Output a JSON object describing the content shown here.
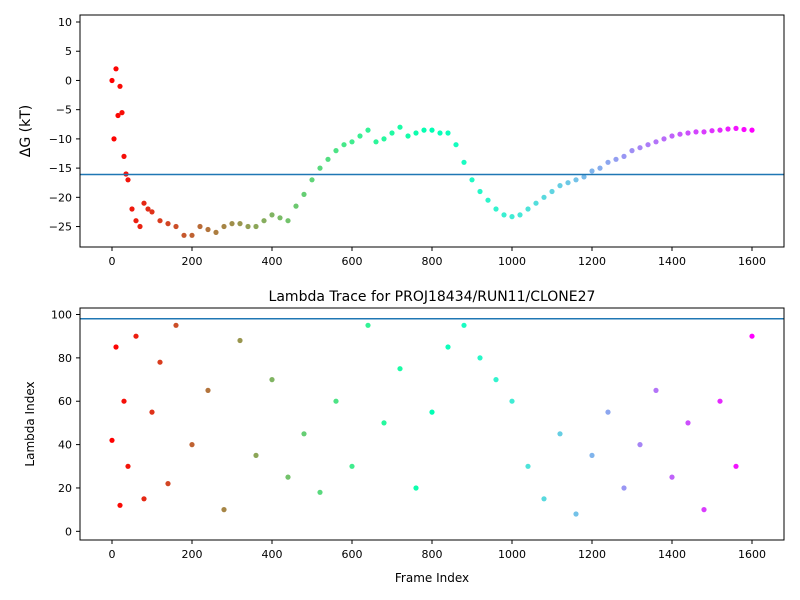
{
  "chart_data": [
    {
      "type": "scatter",
      "title": "",
      "xlabel": "",
      "ylabel": "ΔG (kT)",
      "xlim": [
        -80,
        1680
      ],
      "ylim": [
        -28.5,
        11.2
      ],
      "xticks": [
        0,
        200,
        400,
        600,
        800,
        1000,
        1200,
        1400,
        1600
      ],
      "yticks": [
        10,
        5,
        0,
        -5,
        -10,
        -15,
        -20,
        -25
      ],
      "hline": -16.1,
      "hline_color": "#1f77b4",
      "colormap": "rainbow (colored by frame index)",
      "series": [
        {
          "x": [
            0,
            5,
            10,
            15,
            20,
            25,
            30,
            35,
            40,
            50,
            60,
            70,
            80,
            90,
            100,
            120,
            140,
            160,
            180,
            200,
            220,
            240,
            260,
            280,
            300,
            320,
            340,
            360,
            380,
            400,
            420,
            440,
            460,
            480,
            500,
            520,
            540,
            560,
            580,
            600,
            620,
            640,
            660,
            680,
            700,
            720,
            740,
            760,
            780,
            800,
            820,
            840,
            860,
            880,
            900,
            920,
            940,
            960,
            980,
            1000,
            1020,
            1040,
            1060,
            1080,
            1100,
            1120,
            1140,
            1160,
            1180,
            1200,
            1220,
            1240,
            1260,
            1280,
            1300,
            1320,
            1340,
            1360,
            1380,
            1400,
            1420,
            1440,
            1460,
            1480,
            1500,
            1520,
            1540,
            1560,
            1580,
            1600
          ],
          "y": [
            0,
            -10,
            2,
            -6,
            -1,
            -5.5,
            -13,
            -16,
            -17,
            -22,
            -24,
            -25,
            -21,
            -22,
            -22.5,
            -24,
            -24.5,
            -25,
            -26.5,
            -26.5,
            -25,
            -25.5,
            -26,
            -25,
            -24.5,
            -24.5,
            -25,
            -25,
            -24,
            -23,
            -23.5,
            -24,
            -21.5,
            -19.5,
            -17,
            -15,
            -13.5,
            -12,
            -11,
            -10.5,
            -9.5,
            -8.5,
            -10.5,
            -10,
            -9,
            -8,
            -9.5,
            -9,
            -8.5,
            -8.5,
            -9,
            -9,
            -11,
            -14,
            -17,
            -19,
            -20.5,
            -22,
            -23,
            -23.3,
            -23,
            -22,
            -21,
            -20,
            -19,
            -18,
            -17.5,
            -17,
            -16.5,
            -15.5,
            -15,
            -14,
            -13.5,
            -13,
            -12,
            -11.5,
            -11,
            -10.5,
            -10,
            -9.5,
            -9.2,
            -9,
            -8.8,
            -8.8,
            -8.6,
            -8.5,
            -8.3,
            -8.2,
            -8.4,
            -8.5
          ]
        }
      ]
    },
    {
      "type": "scatter",
      "title": "Lambda Trace for PROJ18434/RUN11/CLONE27",
      "xlabel": "Frame Index",
      "ylabel": "Lambda Index",
      "xlim": [
        -80,
        1680
      ],
      "ylim": [
        -4,
        103
      ],
      "xticks": [
        0,
        200,
        400,
        600,
        800,
        1000,
        1200,
        1400,
        1600
      ],
      "yticks": [
        0,
        20,
        40,
        60,
        80,
        100
      ],
      "hline": 98,
      "hline_color": "#1f77b4",
      "colormap": "rainbow (colored by frame index)",
      "series": [
        {
          "x": [
            0,
            10,
            20,
            30,
            40,
            60,
            80,
            100,
            120,
            140,
            160,
            200,
            240,
            280,
            320,
            360,
            400,
            440,
            480,
            520,
            560,
            600,
            640,
            680,
            720,
            760,
            800,
            840,
            880,
            920,
            960,
            1000,
            1040,
            1080,
            1120,
            1160,
            1200,
            1240,
            1280,
            1320,
            1360,
            1400,
            1440,
            1480,
            1520,
            1560,
            1600
          ],
          "y": [
            42,
            85,
            12,
            60,
            30,
            90,
            15,
            55,
            78,
            22,
            95,
            40,
            65,
            10,
            88,
            35,
            70,
            25,
            45,
            18,
            60,
            30,
            95,
            50,
            75,
            20,
            55,
            85,
            95,
            80,
            70,
            60,
            30,
            15,
            45,
            8,
            35,
            55,
            20,
            40,
            65,
            25,
            50,
            10,
            60,
            30,
            90
          ]
        }
      ]
    }
  ]
}
